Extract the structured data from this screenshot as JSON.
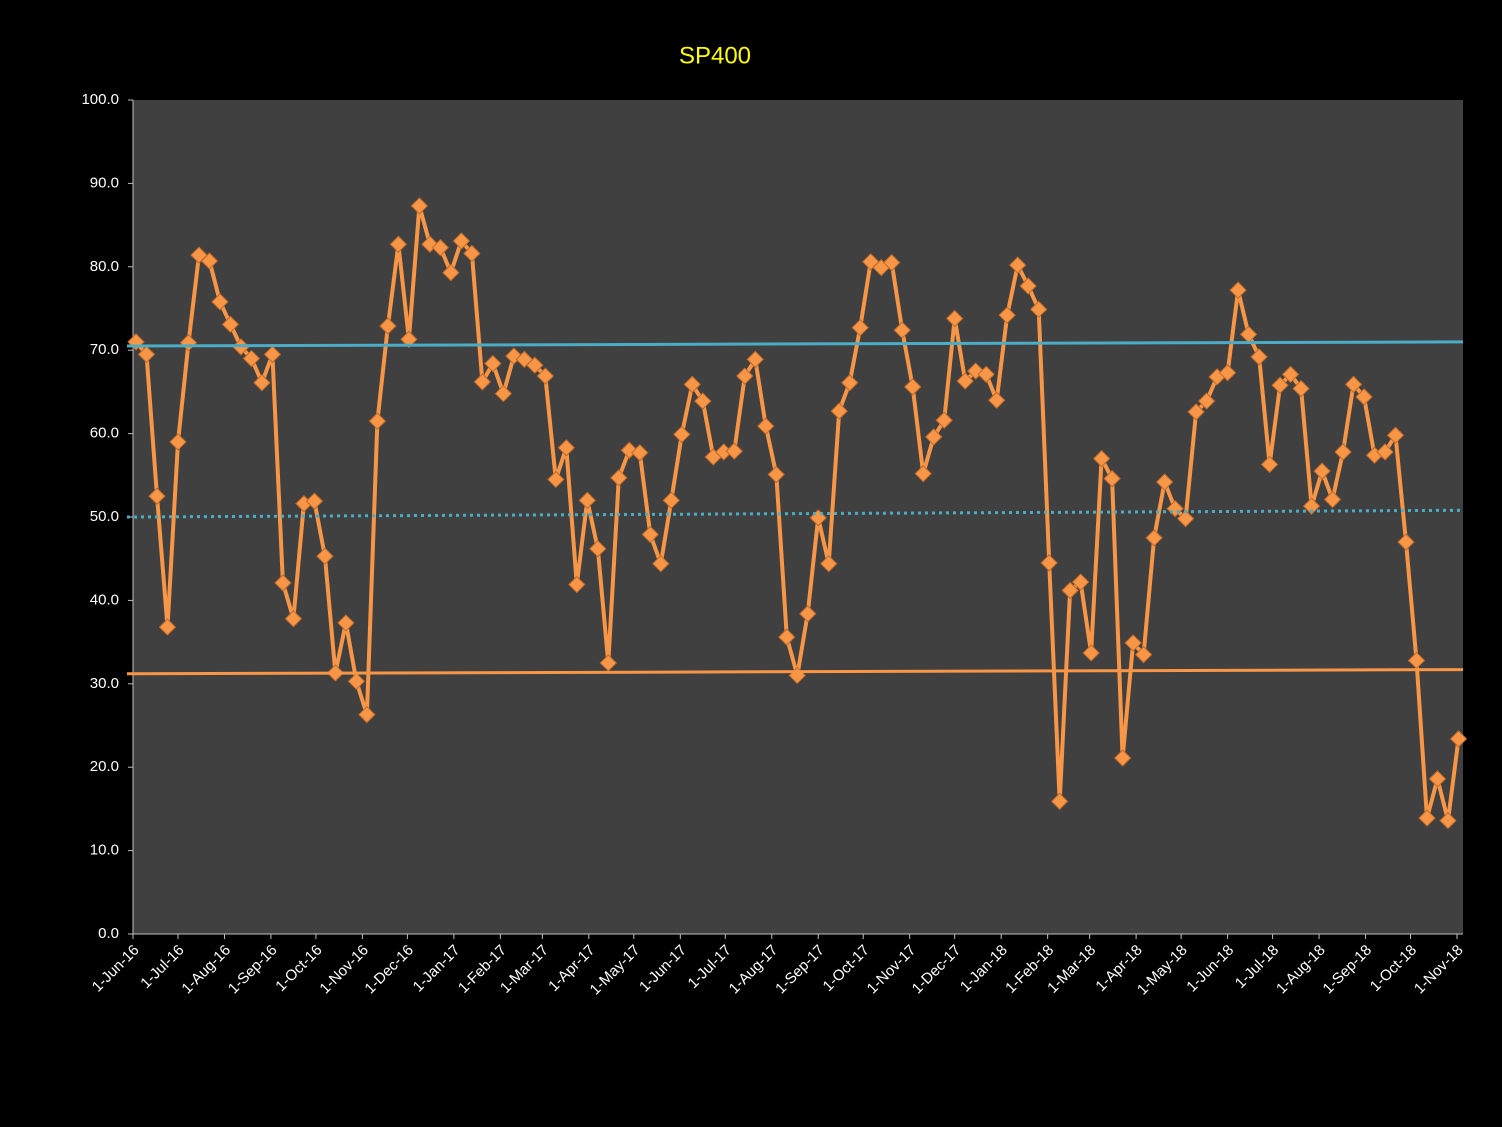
{
  "chart_data": {
    "type": "line",
    "title": "SP400",
    "x": [
      "2016-06-03",
      "2016-06-10",
      "2016-06-17",
      "2016-06-24",
      "2016-07-01",
      "2016-07-08",
      "2016-07-15",
      "2016-07-22",
      "2016-07-29",
      "2016-08-05",
      "2016-08-12",
      "2016-08-19",
      "2016-08-26",
      "2016-09-02",
      "2016-09-09",
      "2016-09-16",
      "2016-09-23",
      "2016-09-30",
      "2016-10-07",
      "2016-10-14",
      "2016-10-21",
      "2016-10-28",
      "2016-11-04",
      "2016-11-11",
      "2016-11-18",
      "2016-11-25",
      "2016-12-02",
      "2016-12-09",
      "2016-12-16",
      "2016-12-23",
      "2016-12-30",
      "2017-01-06",
      "2017-01-13",
      "2017-01-20",
      "2017-01-27",
      "2017-02-03",
      "2017-02-10",
      "2017-02-17",
      "2017-02-24",
      "2017-03-03",
      "2017-03-10",
      "2017-03-17",
      "2017-03-24",
      "2017-03-31",
      "2017-04-07",
      "2017-04-14",
      "2017-04-21",
      "2017-04-28",
      "2017-05-05",
      "2017-05-12",
      "2017-05-19",
      "2017-05-26",
      "2017-06-02",
      "2017-06-09",
      "2017-06-16",
      "2017-06-23",
      "2017-06-30",
      "2017-07-07",
      "2017-07-14",
      "2017-07-21",
      "2017-07-28",
      "2017-08-04",
      "2017-08-11",
      "2017-08-18",
      "2017-08-25",
      "2017-09-01",
      "2017-09-08",
      "2017-09-15",
      "2017-09-22",
      "2017-09-29",
      "2017-10-06",
      "2017-10-13",
      "2017-10-20",
      "2017-10-27",
      "2017-11-03",
      "2017-11-10",
      "2017-11-17",
      "2017-11-24",
      "2017-12-01",
      "2017-12-08",
      "2017-12-15",
      "2017-12-22",
      "2017-12-29",
      "2018-01-05",
      "2018-01-12",
      "2018-01-19",
      "2018-01-26",
      "2018-02-02",
      "2018-02-09",
      "2018-02-16",
      "2018-02-23",
      "2018-03-02",
      "2018-03-09",
      "2018-03-16",
      "2018-03-23",
      "2018-03-30",
      "2018-04-06",
      "2018-04-13",
      "2018-04-20",
      "2018-04-27",
      "2018-05-04",
      "2018-05-11",
      "2018-05-18",
      "2018-05-25",
      "2018-06-01",
      "2018-06-08",
      "2018-06-15",
      "2018-06-22",
      "2018-06-29",
      "2018-07-06",
      "2018-07-13",
      "2018-07-20",
      "2018-07-27",
      "2018-08-03",
      "2018-08-10",
      "2018-08-17",
      "2018-08-24",
      "2018-08-31",
      "2018-09-07",
      "2018-09-14",
      "2018-09-21",
      "2018-09-28",
      "2018-10-05",
      "2018-10-12",
      "2018-10-19",
      "2018-10-26",
      "2018-11-02"
    ],
    "series": [
      {
        "color": "#f79646",
        "values": [
          71.0,
          69.5,
          52.5,
          36.8,
          59.0,
          70.9,
          81.4,
          80.7,
          75.8,
          73.1,
          70.4,
          69.0,
          66.1,
          69.5,
          42.1,
          37.8,
          51.6,
          51.9,
          45.3,
          31.3,
          37.3,
          30.3,
          26.3,
          61.5,
          72.9,
          82.7,
          71.3,
          87.3,
          82.7,
          82.3,
          79.3,
          83.1,
          81.6,
          66.2,
          68.4,
          64.8,
          69.3,
          68.9,
          68.2,
          66.9,
          54.5,
          58.3,
          41.9,
          52.0,
          46.2,
          32.5,
          54.7,
          58.0,
          57.7,
          47.9,
          44.4,
          52.0,
          59.9,
          65.9,
          63.9,
          57.2,
          57.8,
          57.9,
          66.9,
          68.9,
          60.9,
          55.1,
          35.6,
          31.0,
          38.4,
          49.9,
          44.4,
          62.7,
          66.1,
          72.7,
          80.6,
          79.9,
          80.5,
          72.4,
          65.6,
          55.2,
          59.6,
          61.6,
          73.8,
          66.3,
          67.5,
          67.1,
          64.0,
          74.2,
          80.2,
          77.7,
          74.9,
          44.5,
          15.9,
          41.2,
          42.2,
          33.7,
          57.0,
          54.6,
          21.1,
          34.9,
          33.5,
          47.5,
          54.2,
          51.0,
          49.8,
          62.6,
          63.9,
          66.8,
          67.3,
          77.2,
          71.9,
          69.2,
          56.3,
          65.8,
          67.1,
          65.4,
          51.3,
          55.5,
          52.1,
          57.8,
          65.9,
          64.4,
          57.4,
          57.8,
          59.8,
          47.0,
          32.8,
          13.9,
          18.6,
          13.6,
          23.4
        ],
        "marker": "diamond"
      },
      {
        "color": "#4bacc6",
        "x": [
          "2016-05-28",
          "2018-11-05"
        ],
        "values": [
          70.5,
          71.0
        ],
        "dash": "solid"
      },
      {
        "color": "#4bacc6",
        "x": [
          "2016-05-28",
          "2018-11-05"
        ],
        "values": [
          50.0,
          50.8
        ],
        "dash": "dotted"
      },
      {
        "color": "#f79646",
        "x": [
          "2016-05-28",
          "2018-11-05"
        ],
        "values": [
          31.2,
          31.7
        ],
        "dash": "solid"
      }
    ],
    "xlim": [
      "2016-06-01",
      "2018-11-05"
    ],
    "xticks": [
      {
        "value": "2016-06-01",
        "label": "1-Jun-16"
      },
      {
        "value": "2016-07-01",
        "label": "1-Jul-16"
      },
      {
        "value": "2016-08-01",
        "label": "1-Aug-16"
      },
      {
        "value": "2016-09-01",
        "label": "1-Sep-16"
      },
      {
        "value": "2016-10-01",
        "label": "1-Oct-16"
      },
      {
        "value": "2016-11-01",
        "label": "1-Nov-16"
      },
      {
        "value": "2016-12-01",
        "label": "1-Dec-16"
      },
      {
        "value": "2017-01-01",
        "label": "1-Jan-17"
      },
      {
        "value": "2017-02-01",
        "label": "1-Feb-17"
      },
      {
        "value": "2017-03-01",
        "label": "1-Mar-17"
      },
      {
        "value": "2017-04-01",
        "label": "1-Apr-17"
      },
      {
        "value": "2017-05-01",
        "label": "1-May-17"
      },
      {
        "value": "2017-06-01",
        "label": "1-Jun-17"
      },
      {
        "value": "2017-07-01",
        "label": "1-Jul-17"
      },
      {
        "value": "2017-08-01",
        "label": "1-Aug-17"
      },
      {
        "value": "2017-09-01",
        "label": "1-Sep-17"
      },
      {
        "value": "2017-10-01",
        "label": "1-Oct-17"
      },
      {
        "value": "2017-11-01",
        "label": "1-Nov-17"
      },
      {
        "value": "2017-12-01",
        "label": "1-Dec-17"
      },
      {
        "value": "2018-01-01",
        "label": "1-Jan-18"
      },
      {
        "value": "2018-02-01",
        "label": "1-Feb-18"
      },
      {
        "value": "2018-03-01",
        "label": "1-Mar-18"
      },
      {
        "value": "2018-04-01",
        "label": "1-Apr-18"
      },
      {
        "value": "2018-05-01",
        "label": "1-May-18"
      },
      {
        "value": "2018-06-01",
        "label": "1-Jun-18"
      },
      {
        "value": "2018-07-01",
        "label": "1-Jul-18"
      },
      {
        "value": "2018-08-01",
        "label": "1-Aug-18"
      },
      {
        "value": "2018-09-01",
        "label": "1-Sep-18"
      },
      {
        "value": "2018-10-01",
        "label": "1-Oct-18"
      },
      {
        "value": "2018-11-01",
        "label": "1-Nov-18"
      }
    ],
    "ylim": [
      0,
      100
    ],
    "yticks": [
      {
        "value": 0,
        "label": "0.0"
      },
      {
        "value": 10,
        "label": "10.0"
      },
      {
        "value": 20,
        "label": "20.0"
      },
      {
        "value": 30,
        "label": "30.0"
      },
      {
        "value": 40,
        "label": "40.0"
      },
      {
        "value": 50,
        "label": "50.0"
      },
      {
        "value": 60,
        "label": "60.0"
      },
      {
        "value": 70,
        "label": "70.0"
      },
      {
        "value": 80,
        "label": "80.0"
      },
      {
        "value": 90,
        "label": "90.0"
      },
      {
        "value": 100,
        "label": "100.0"
      }
    ],
    "grid": false
  }
}
